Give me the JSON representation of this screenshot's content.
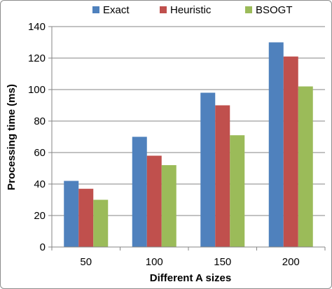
{
  "chart_data": {
    "type": "bar",
    "categories": [
      "50",
      "100",
      "150",
      "200"
    ],
    "series": [
      {
        "name": "Exact",
        "values": [
          42,
          70,
          98,
          130
        ],
        "color": "#4f81bd"
      },
      {
        "name": "Heuristic",
        "values": [
          37,
          58,
          90,
          121
        ],
        "color": "#c0504d"
      },
      {
        "name": "BSOGT",
        "values": [
          30,
          52,
          71,
          102
        ],
        "color": "#9bbb59"
      }
    ],
    "title": "",
    "xlabel": "Different A sizes",
    "ylabel": "Processing time (ms)",
    "ylim": [
      0,
      140
    ],
    "yticks": [
      "0",
      "20",
      "40",
      "60",
      "80",
      "100",
      "120",
      "140"
    ],
    "grid": true,
    "legend_position": "top"
  }
}
